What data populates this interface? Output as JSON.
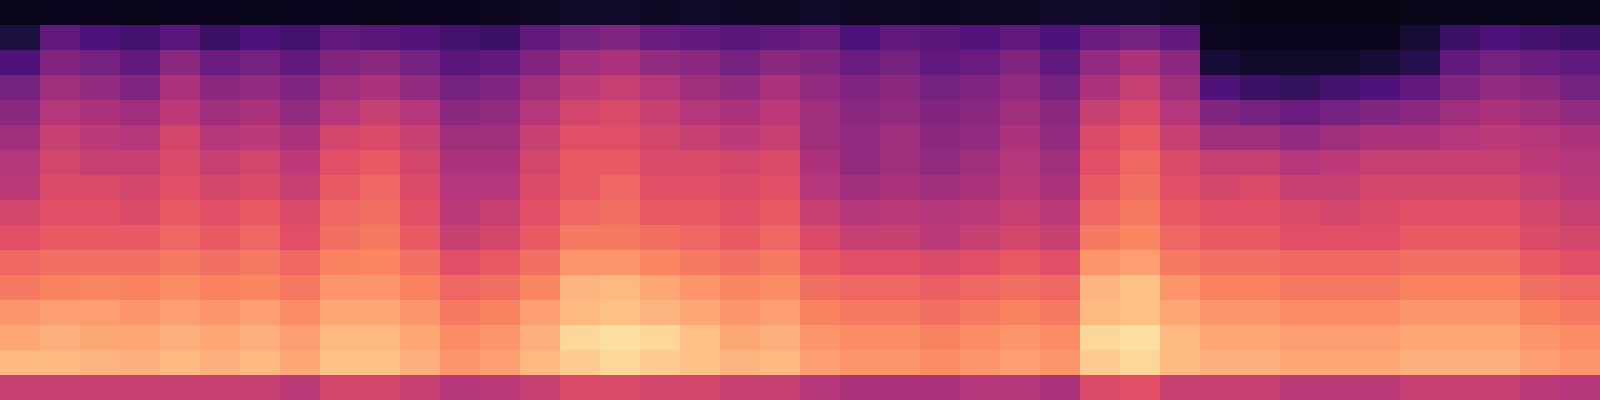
{
  "chart_data": {
    "type": "heatmap",
    "tick_labels": false,
    "zlim": [
      0,
      1
    ],
    "cells": [
      [
        0.04,
        0.05,
        0.05,
        0.04,
        0.05,
        0.05,
        0.04,
        0.05,
        0.05,
        0.04,
        0.05,
        0.05,
        0.06,
        0.07,
        0.08,
        0.08,
        0.07,
        0.08,
        0.07,
        0.07,
        0.08,
        0.07,
        0.07,
        0.06,
        0.07,
        0.07,
        0.08,
        0.08,
        0.08,
        0.07,
        0.04,
        0.03,
        0.03,
        0.03,
        0.03,
        0.04,
        0.04,
        0.04,
        0.04,
        0.04
      ],
      [
        0.12,
        0.3,
        0.25,
        0.22,
        0.28,
        0.2,
        0.25,
        0.22,
        0.3,
        0.28,
        0.26,
        0.22,
        0.2,
        0.3,
        0.35,
        0.38,
        0.32,
        0.3,
        0.28,
        0.3,
        0.32,
        0.25,
        0.3,
        0.28,
        0.26,
        0.3,
        0.25,
        0.32,
        0.35,
        0.3,
        0.06,
        0.05,
        0.05,
        0.05,
        0.05,
        0.1,
        0.2,
        0.25,
        0.22,
        0.2
      ],
      [
        0.25,
        0.38,
        0.35,
        0.3,
        0.4,
        0.32,
        0.35,
        0.3,
        0.38,
        0.4,
        0.35,
        0.28,
        0.3,
        0.38,
        0.45,
        0.48,
        0.42,
        0.4,
        0.35,
        0.4,
        0.38,
        0.32,
        0.35,
        0.3,
        0.32,
        0.38,
        0.3,
        0.42,
        0.48,
        0.4,
        0.1,
        0.08,
        0.08,
        0.08,
        0.1,
        0.15,
        0.3,
        0.35,
        0.32,
        0.3
      ],
      [
        0.35,
        0.45,
        0.42,
        0.38,
        0.48,
        0.4,
        0.42,
        0.38,
        0.45,
        0.48,
        0.42,
        0.35,
        0.38,
        0.45,
        0.52,
        0.55,
        0.5,
        0.45,
        0.42,
        0.48,
        0.42,
        0.38,
        0.4,
        0.35,
        0.38,
        0.42,
        0.35,
        0.48,
        0.55,
        0.45,
        0.25,
        0.2,
        0.18,
        0.22,
        0.25,
        0.3,
        0.38,
        0.42,
        0.4,
        0.35
      ],
      [
        0.4,
        0.5,
        0.48,
        0.45,
        0.52,
        0.45,
        0.48,
        0.42,
        0.5,
        0.55,
        0.5,
        0.4,
        0.42,
        0.5,
        0.58,
        0.6,
        0.55,
        0.5,
        0.48,
        0.52,
        0.45,
        0.4,
        0.42,
        0.38,
        0.4,
        0.45,
        0.4,
        0.55,
        0.6,
        0.5,
        0.38,
        0.35,
        0.32,
        0.35,
        0.38,
        0.4,
        0.45,
        0.48,
        0.45,
        0.42
      ],
      [
        0.45,
        0.55,
        0.52,
        0.5,
        0.58,
        0.5,
        0.52,
        0.48,
        0.58,
        0.6,
        0.55,
        0.45,
        0.45,
        0.55,
        0.62,
        0.62,
        0.58,
        0.55,
        0.52,
        0.55,
        0.45,
        0.42,
        0.45,
        0.4,
        0.42,
        0.48,
        0.42,
        0.6,
        0.65,
        0.55,
        0.45,
        0.45,
        0.42,
        0.45,
        0.48,
        0.48,
        0.5,
        0.52,
        0.5,
        0.48
      ],
      [
        0.5,
        0.58,
        0.55,
        0.55,
        0.6,
        0.55,
        0.58,
        0.52,
        0.62,
        0.65,
        0.58,
        0.48,
        0.48,
        0.58,
        0.65,
        0.65,
        0.6,
        0.6,
        0.58,
        0.6,
        0.48,
        0.42,
        0.45,
        0.42,
        0.45,
        0.5,
        0.45,
        0.62,
        0.68,
        0.6,
        0.55,
        0.55,
        0.5,
        0.52,
        0.55,
        0.55,
        0.55,
        0.55,
        0.52,
        0.5
      ],
      [
        0.52,
        0.6,
        0.6,
        0.58,
        0.62,
        0.58,
        0.6,
        0.55,
        0.65,
        0.68,
        0.6,
        0.5,
        0.5,
        0.6,
        0.65,
        0.68,
        0.62,
        0.62,
        0.6,
        0.62,
        0.5,
        0.45,
        0.48,
        0.45,
        0.48,
        0.52,
        0.48,
        0.65,
        0.7,
        0.62,
        0.58,
        0.6,
        0.55,
        0.55,
        0.58,
        0.58,
        0.58,
        0.58,
        0.55,
        0.52
      ],
      [
        0.58,
        0.62,
        0.62,
        0.6,
        0.65,
        0.62,
        0.65,
        0.6,
        0.68,
        0.7,
        0.62,
        0.52,
        0.55,
        0.62,
        0.68,
        0.7,
        0.65,
        0.65,
        0.62,
        0.65,
        0.55,
        0.5,
        0.52,
        0.5,
        0.52,
        0.55,
        0.52,
        0.68,
        0.72,
        0.65,
        0.62,
        0.62,
        0.6,
        0.58,
        0.6,
        0.62,
        0.62,
        0.62,
        0.58,
        0.55
      ],
      [
        0.62,
        0.65,
        0.65,
        0.65,
        0.68,
        0.65,
        0.68,
        0.62,
        0.7,
        0.72,
        0.65,
        0.55,
        0.58,
        0.65,
        0.72,
        0.72,
        0.7,
        0.68,
        0.65,
        0.68,
        0.6,
        0.55,
        0.55,
        0.52,
        0.55,
        0.58,
        0.55,
        0.72,
        0.75,
        0.68,
        0.65,
        0.65,
        0.62,
        0.62,
        0.62,
        0.65,
        0.65,
        0.65,
        0.6,
        0.58
      ],
      [
        0.68,
        0.7,
        0.7,
        0.7,
        0.72,
        0.7,
        0.72,
        0.68,
        0.74,
        0.75,
        0.7,
        0.62,
        0.65,
        0.7,
        0.78,
        0.78,
        0.75,
        0.72,
        0.7,
        0.72,
        0.65,
        0.62,
        0.62,
        0.6,
        0.62,
        0.65,
        0.62,
        0.78,
        0.8,
        0.72,
        0.7,
        0.7,
        0.68,
        0.68,
        0.68,
        0.7,
        0.7,
        0.7,
        0.65,
        0.62
      ],
      [
        0.72,
        0.74,
        0.75,
        0.74,
        0.76,
        0.74,
        0.75,
        0.72,
        0.78,
        0.78,
        0.74,
        0.68,
        0.7,
        0.75,
        0.85,
        0.86,
        0.82,
        0.78,
        0.75,
        0.76,
        0.7,
        0.68,
        0.68,
        0.66,
        0.68,
        0.7,
        0.68,
        0.85,
        0.88,
        0.78,
        0.74,
        0.74,
        0.72,
        0.72,
        0.72,
        0.74,
        0.74,
        0.74,
        0.7,
        0.68
      ],
      [
        0.78,
        0.8,
        0.8,
        0.78,
        0.8,
        0.78,
        0.8,
        0.76,
        0.82,
        0.82,
        0.78,
        0.72,
        0.74,
        0.8,
        0.86,
        0.88,
        0.85,
        0.82,
        0.78,
        0.8,
        0.74,
        0.72,
        0.72,
        0.7,
        0.72,
        0.74,
        0.72,
        0.86,
        0.88,
        0.82,
        0.78,
        0.78,
        0.76,
        0.76,
        0.76,
        0.78,
        0.78,
        0.78,
        0.74,
        0.72
      ],
      [
        0.82,
        0.84,
        0.82,
        0.82,
        0.84,
        0.82,
        0.84,
        0.8,
        0.86,
        0.86,
        0.82,
        0.76,
        0.78,
        0.84,
        0.92,
        0.94,
        0.92,
        0.88,
        0.82,
        0.84,
        0.78,
        0.76,
        0.76,
        0.74,
        0.76,
        0.78,
        0.76,
        0.92,
        0.94,
        0.86,
        0.82,
        0.82,
        0.8,
        0.8,
        0.8,
        0.82,
        0.82,
        0.82,
        0.78,
        0.76
      ],
      [
        0.86,
        0.86,
        0.85,
        0.84,
        0.86,
        0.84,
        0.86,
        0.82,
        0.88,
        0.88,
        0.84,
        0.78,
        0.8,
        0.86,
        0.9,
        0.92,
        0.9,
        0.88,
        0.85,
        0.86,
        0.8,
        0.78,
        0.78,
        0.76,
        0.78,
        0.8,
        0.78,
        0.9,
        0.92,
        0.86,
        0.84,
        0.84,
        0.82,
        0.82,
        0.82,
        0.84,
        0.84,
        0.84,
        0.8,
        0.78
      ],
      [
        0.55,
        0.55,
        0.55,
        0.55,
        0.55,
        0.55,
        0.55,
        0.52,
        0.58,
        0.58,
        0.55,
        0.5,
        0.52,
        0.55,
        0.6,
        0.6,
        0.58,
        0.58,
        0.55,
        0.55,
        0.5,
        0.48,
        0.48,
        0.48,
        0.5,
        0.5,
        0.48,
        0.6,
        0.62,
        0.55,
        0.55,
        0.55,
        0.52,
        0.52,
        0.52,
        0.55,
        0.55,
        0.55,
        0.52,
        0.5
      ]
    ]
  }
}
